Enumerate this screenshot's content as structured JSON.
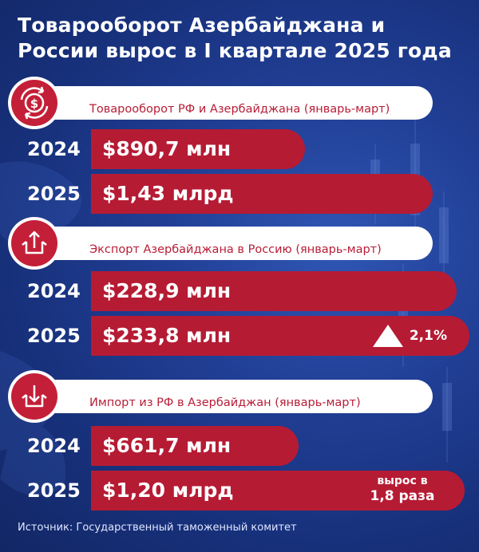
{
  "title_lines": [
    "Товарооборот Азербайджана и",
    "России вырос в I квартале 2025 года"
  ],
  "sections": [
    {
      "label": "Товарооборот РФ и Азербайджана (январь-март)",
      "icon": "dollar-exchange-icon",
      "rows": [
        {
          "year": "2024",
          "value_label": "$890,7 млн"
        },
        {
          "year": "2025",
          "value_label": "$1,43 млрд"
        }
      ]
    },
    {
      "label": "Экспорт Азербайджана в Россию (январь-март)",
      "icon": "export-box-icon",
      "rows": [
        {
          "year": "2024",
          "value_label": "$228,9 млн"
        },
        {
          "year": "2025",
          "value_label": "$233,8 млн"
        }
      ],
      "growth": "2,1%"
    },
    {
      "label": "Импорт из РФ в Азербайджан (январь-март)",
      "icon": "import-box-icon",
      "rows": [
        {
          "year": "2024",
          "value_label": "$661,7 млн"
        },
        {
          "year": "2025",
          "value_label": "$1,20 млрд"
        }
      ],
      "growth_note": [
        "вырос в",
        "1,8 раза"
      ]
    }
  ],
  "source": "Источник: Государственный таможенный комитет",
  "colors": {
    "accent_red": "#b61b34",
    "header_text": "#b81d36",
    "background": "#1b3686"
  },
  "chart_data": {
    "type": "bar",
    "categories": [
      "Товарооборот РФ и Азербайджана (январь-март)",
      "Экспорт Азербайджана в Россию (январь-март)",
      "Импорт из РФ в Азербайджан (январь-март)"
    ],
    "series": [
      {
        "name": "2024",
        "values": [
          890.7,
          228.9,
          661.7
        ]
      },
      {
        "name": "2025",
        "values": [
          1430,
          233.8,
          1200
        ]
      }
    ],
    "unit": "млн $",
    "title": "Товарооборот Азербайджана и России вырос в I квартале 2025 года"
  }
}
